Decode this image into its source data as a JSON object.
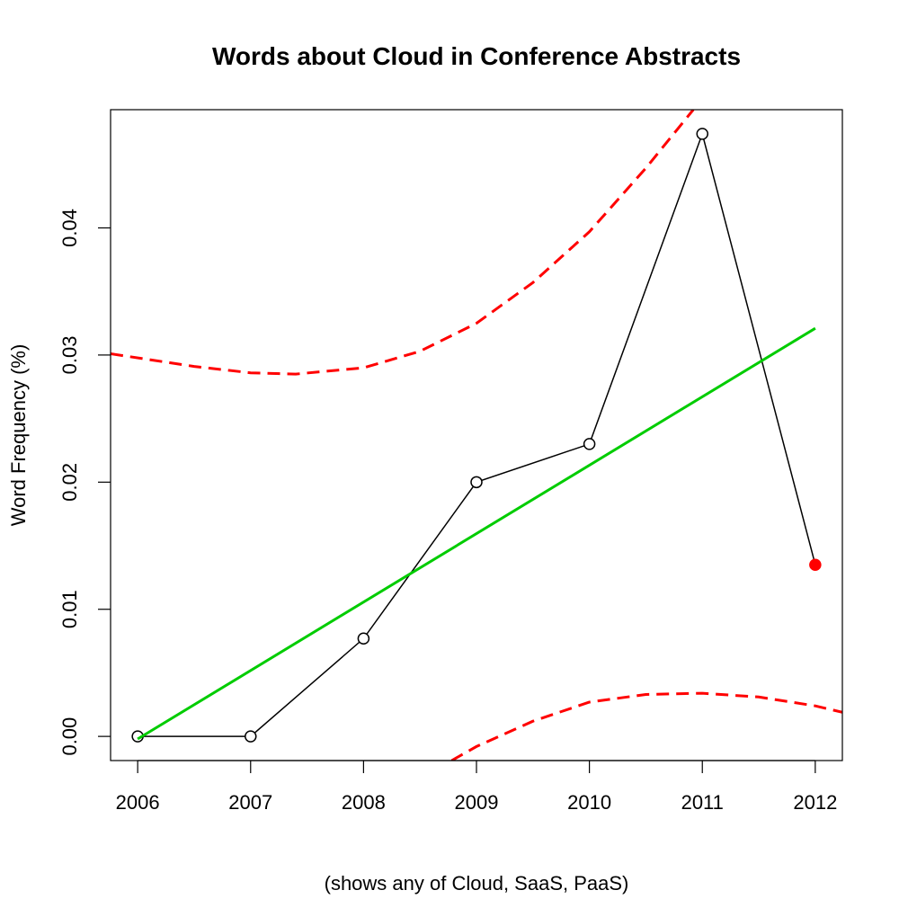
{
  "chart_data": {
    "type": "line",
    "title": "Words about Cloud in Conference Abstracts",
    "xlabel": "(shows any of Cloud, SaaS, PaaS)",
    "ylabel": "Word Frequency (%)",
    "xlim": [
      2005.76,
      2012.24
    ],
    "ylim": [
      -0.0019,
      0.0493
    ],
    "x_ticks": [
      2006,
      2007,
      2008,
      2009,
      2010,
      2011,
      2012
    ],
    "x_tick_labels": [
      "2006",
      "2007",
      "2008",
      "2009",
      "2010",
      "2011",
      "2012"
    ],
    "y_ticks": [
      0,
      0.01,
      0.02,
      0.03,
      0.04
    ],
    "y_tick_labels": [
      "0.00",
      "0.01",
      "0.02",
      "0.03",
      "0.04"
    ],
    "grid": false,
    "legend": "none",
    "series": [
      {
        "kind": "observed",
        "style": "line with open circle markers",
        "color": "#000000",
        "x": [
          2006,
          2007,
          2008,
          2009,
          2010,
          2011,
          2012
        ],
        "y": [
          0.0,
          0.0,
          0.0077,
          0.02,
          0.023,
          0.0474,
          0.0135
        ],
        "highlight_last": {
          "color": "#ff0000",
          "filled": true
        }
      },
      {
        "kind": "linear-fit",
        "style": "solid",
        "color": "#00cc00",
        "x": [
          2006,
          2012
        ],
        "y": [
          -0.0002,
          0.0321
        ]
      },
      {
        "kind": "upper-band",
        "style": "dashed",
        "color": "#ff0000",
        "x": [
          2005.76,
          2006.5,
          2007,
          2007.4,
          2008,
          2008.5,
          2009,
          2009.5,
          2010,
          2010.5,
          2010.92
        ],
        "y": [
          0.0301,
          0.0291,
          0.0286,
          0.0285,
          0.029,
          0.0303,
          0.0325,
          0.0357,
          0.0397,
          0.0447,
          0.0493
        ]
      },
      {
        "kind": "lower-band",
        "style": "dashed",
        "color": "#ff0000",
        "x": [
          2008.78,
          2009,
          2009.5,
          2010,
          2010.5,
          2011,
          2011.5,
          2012,
          2012.24
        ],
        "y": [
          -0.0019,
          -0.0008,
          0.0012,
          0.0027,
          0.0033,
          0.0034,
          0.0031,
          0.0024,
          0.0019
        ]
      }
    ]
  }
}
